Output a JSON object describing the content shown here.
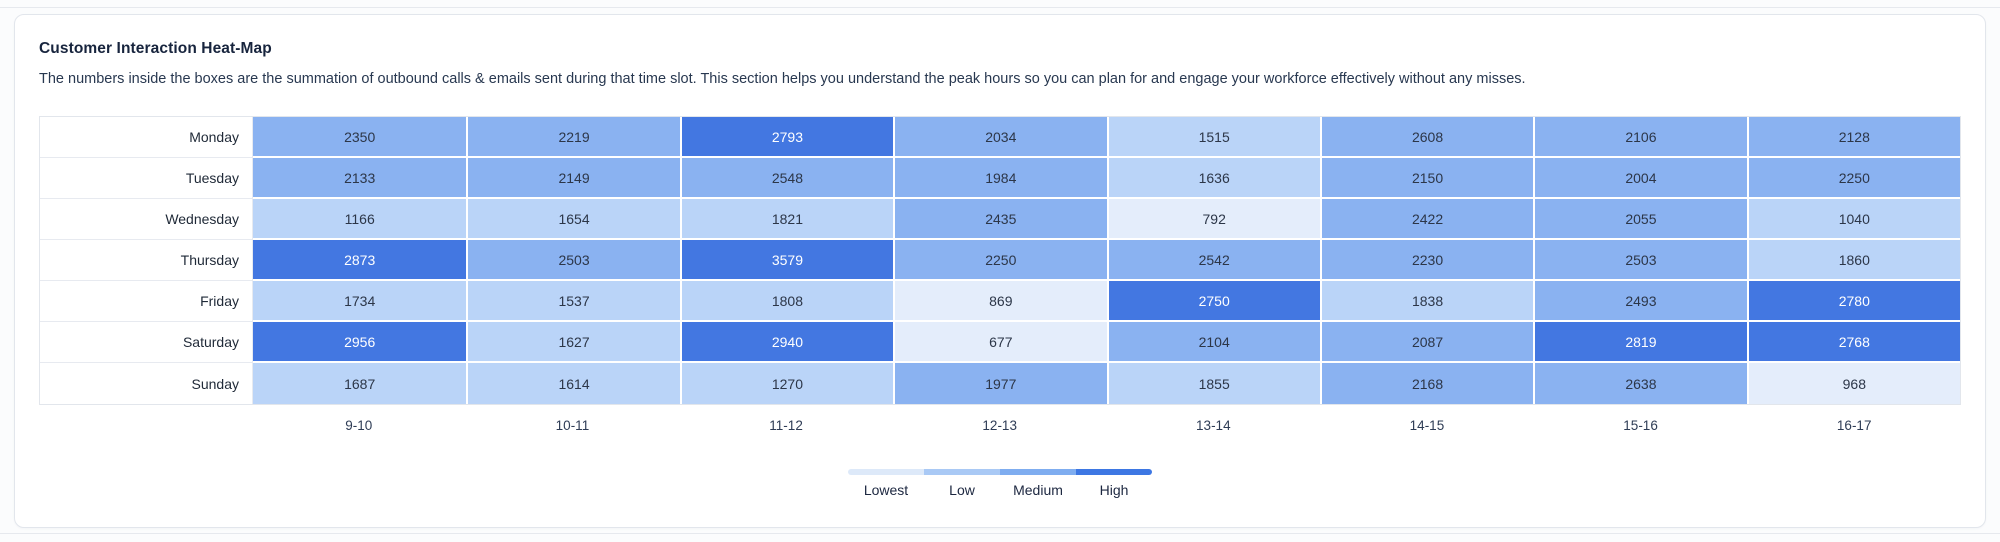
{
  "card": {
    "title": "Customer Interaction Heat-Map",
    "description": "The numbers inside the boxes are the summation of outbound calls & emails sent during that time slot. This section helps you understand the peak hours so you can plan for and engage your workforce effectively without any misses."
  },
  "chart_data": {
    "type": "heatmap",
    "title": "Customer Interaction Heat-Map",
    "x_labels": [
      "9-10",
      "10-11",
      "11-12",
      "12-13",
      "13-14",
      "14-15",
      "15-16",
      "16-17"
    ],
    "y_labels": [
      "Monday",
      "Tuesday",
      "Wednesday",
      "Thursday",
      "Friday",
      "Saturday",
      "Sunday"
    ],
    "rows": [
      {
        "day": "Monday",
        "values": [
          2350,
          2219,
          2793,
          2034,
          1515,
          2608,
          2106,
          2128
        ],
        "levels": [
          "medium",
          "medium",
          "high",
          "medium",
          "low",
          "medium",
          "medium",
          "medium"
        ]
      },
      {
        "day": "Tuesday",
        "values": [
          2133,
          2149,
          2548,
          1984,
          1636,
          2150,
          2004,
          2250
        ],
        "levels": [
          "medium",
          "medium",
          "medium",
          "medium",
          "low",
          "medium",
          "medium",
          "medium"
        ]
      },
      {
        "day": "Wednesday",
        "values": [
          1166,
          1654,
          1821,
          2435,
          792,
          2422,
          2055,
          1040
        ],
        "levels": [
          "low",
          "low",
          "low",
          "medium",
          "lowest",
          "medium",
          "medium",
          "low"
        ]
      },
      {
        "day": "Thursday",
        "values": [
          2873,
          2503,
          3579,
          2250,
          2542,
          2230,
          2503,
          1860
        ],
        "levels": [
          "high",
          "medium",
          "high",
          "medium",
          "medium",
          "medium",
          "medium",
          "low"
        ]
      },
      {
        "day": "Friday",
        "values": [
          1734,
          1537,
          1808,
          869,
          2750,
          1838,
          2493,
          2780
        ],
        "levels": [
          "low",
          "low",
          "low",
          "lowest",
          "high",
          "low",
          "medium",
          "high"
        ]
      },
      {
        "day": "Saturday",
        "values": [
          2956,
          1627,
          2940,
          677,
          2104,
          2087,
          2819,
          2768
        ],
        "levels": [
          "high",
          "low",
          "high",
          "lowest",
          "medium",
          "medium",
          "high",
          "high"
        ]
      },
      {
        "day": "Sunday",
        "values": [
          1687,
          1614,
          1270,
          1977,
          1855,
          2168,
          2638,
          968
        ],
        "levels": [
          "low",
          "low",
          "low",
          "medium",
          "low",
          "medium",
          "medium",
          "lowest"
        ]
      }
    ],
    "level_colors": {
      "lowest": "#e4edfb",
      "low": "#bad4f8",
      "medium": "#8ab2f1",
      "high": "#4377e1"
    },
    "legend": [
      {
        "label": "Lowest",
        "color": "#dde9f9"
      },
      {
        "label": "Low",
        "color": "#a9c9f5"
      },
      {
        "label": "Medium",
        "color": "#7fadf0"
      },
      {
        "label": "High",
        "color": "#3d77e3"
      }
    ],
    "legend_position": "bottom-center"
  }
}
